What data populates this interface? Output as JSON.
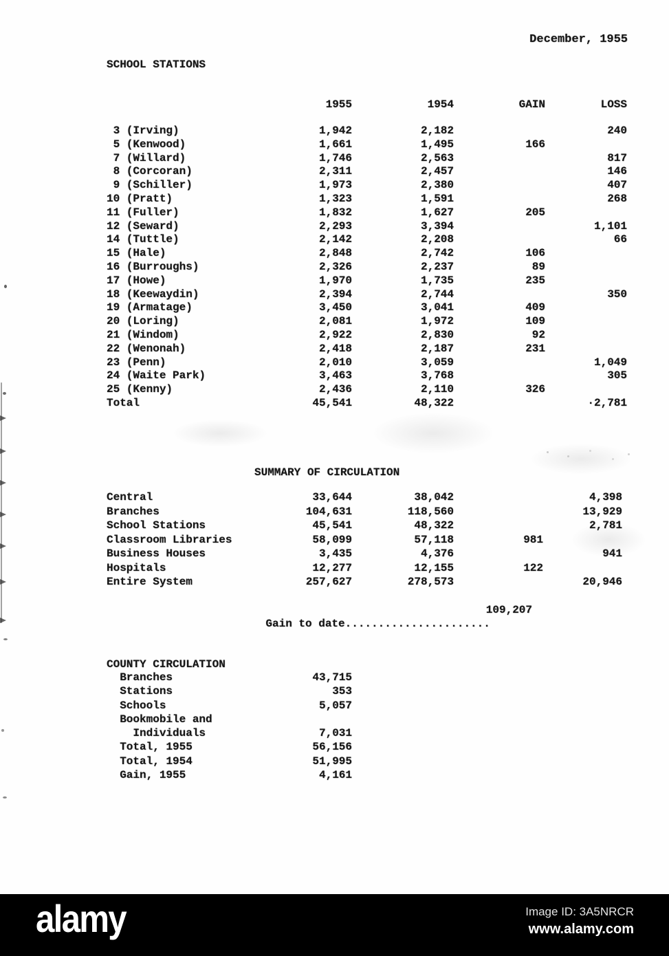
{
  "page": {
    "date": "December, 1955"
  },
  "school_stations": {
    "title": "SCHOOL STATIONS",
    "columns": {
      "y1955": "1955",
      "y1954": "1954",
      "gain": "GAIN",
      "loss": "LOSS"
    },
    "rows": [
      {
        "label": " 3 (Irving)",
        "y1955": "1,942",
        "y1954": "2,182",
        "gain": "",
        "loss": "240"
      },
      {
        "label": " 5 (Kenwood)",
        "y1955": "1,661",
        "y1954": "1,495",
        "gain": "166",
        "loss": ""
      },
      {
        "label": " 7 (Willard)",
        "y1955": "1,746",
        "y1954": "2,563",
        "gain": "",
        "loss": "817"
      },
      {
        "label": " 8 (Corcoran)",
        "y1955": "2,311",
        "y1954": "2,457",
        "gain": "",
        "loss": "146"
      },
      {
        "label": " 9 (Schiller)",
        "y1955": "1,973",
        "y1954": "2,380",
        "gain": "",
        "loss": "407"
      },
      {
        "label": "10 (Pratt)",
        "y1955": "1,323",
        "y1954": "1,591",
        "gain": "",
        "loss": "268"
      },
      {
        "label": "11 (Fuller)",
        "y1955": "1,832",
        "y1954": "1,627",
        "gain": "205",
        "loss": ""
      },
      {
        "label": "12 (Seward)",
        "y1955": "2,293",
        "y1954": "3,394",
        "gain": "",
        "loss": "1,101"
      },
      {
        "label": "14 (Tuttle)",
        "y1955": "2,142",
        "y1954": "2,208",
        "gain": "",
        "loss": "66"
      },
      {
        "label": "15 (Hale)",
        "y1955": "2,848",
        "y1954": "2,742",
        "gain": "106",
        "loss": ""
      },
      {
        "label": "16 (Burroughs)",
        "y1955": "2,326",
        "y1954": "2,237",
        "gain": "89",
        "loss": ""
      },
      {
        "label": "17 (Howe)",
        "y1955": "1,970",
        "y1954": "1,735",
        "gain": "235",
        "loss": ""
      },
      {
        "label": "18 (Keewaydin)",
        "y1955": "2,394",
        "y1954": "2,744",
        "gain": "",
        "loss": "350"
      },
      {
        "label": "19 (Armatage)",
        "y1955": "3,450",
        "y1954": "3,041",
        "gain": "409",
        "loss": ""
      },
      {
        "label": "20 (Loring)",
        "y1955": "2,081",
        "y1954": "1,972",
        "gain": "109",
        "loss": ""
      },
      {
        "label": "21 (Windom)",
        "y1955": "2,922",
        "y1954": "2,830",
        "gain": "92",
        "loss": ""
      },
      {
        "label": "22 (Wenonah)",
        "y1955": "2,418",
        "y1954": "2,187",
        "gain": "231",
        "loss": ""
      },
      {
        "label": "23 (Penn)",
        "y1955": "2,010",
        "y1954": "3,059",
        "gain": "",
        "loss": "1,049"
      },
      {
        "label": "24 (Waite Park)",
        "y1955": "3,463",
        "y1954": "3,768",
        "gain": "",
        "loss": "305"
      },
      {
        "label": "25 (Kenny)",
        "y1955": "2,436",
        "y1954": "2,110",
        "gain": "326",
        "loss": ""
      },
      {
        "label": "Total",
        "y1955": "45,541",
        "y1954": "48,322",
        "gain": "",
        "loss": "·2,781"
      }
    ]
  },
  "summary": {
    "title": "SUMMARY OF CIRCULATION",
    "rows": [
      {
        "label": "Central",
        "y1955": "33,644",
        "y1954": "38,042",
        "gain": "",
        "loss": "4,398"
      },
      {
        "label": "Branches",
        "y1955": "104,631",
        "y1954": "118,560",
        "gain": "",
        "loss": "13,929"
      },
      {
        "label": "School Stations",
        "y1955": "45,541",
        "y1954": "48,322",
        "gain": "",
        "loss": "2,781"
      },
      {
        "label": "Classroom Libraries",
        "y1955": "58,099",
        "y1954": "57,118",
        "gain": "981",
        "loss": ""
      },
      {
        "label": "Business Houses",
        "y1955": "3,435",
        "y1954": "4,376",
        "gain": "",
        "loss": "941"
      },
      {
        "label": "Hospitals",
        "y1955": "12,277",
        "y1954": "12,155",
        "gain": "122",
        "loss": ""
      },
      {
        "label": "Entire System",
        "y1955": "257,627",
        "y1954": "278,573",
        "gain": "",
        "loss": "20,946"
      }
    ],
    "gain_to_date": {
      "label": "Gain to date",
      "dots": "......................",
      "value": "109,207"
    }
  },
  "county": {
    "title": "COUNTY CIRCULATION",
    "rows": [
      {
        "label": "  Branches",
        "value": "43,715"
      },
      {
        "label": "  Stations",
        "value": "353"
      },
      {
        "label": "  Schools",
        "value": "5,057"
      },
      {
        "label": "  Bookmobile and",
        "value": ""
      },
      {
        "label": "    Individuals",
        "value": "7,031"
      },
      {
        "label": "  Total, 1955",
        "value": "56,156"
      },
      {
        "label": "  Total, 1954",
        "value": "51,995"
      },
      {
        "label": "  Gain, 1955",
        "value": "4,161"
      }
    ]
  },
  "watermark": {
    "logo": "alamy",
    "image_id": "Image ID: 3A5NRCR",
    "url": "www.alamy.com"
  }
}
